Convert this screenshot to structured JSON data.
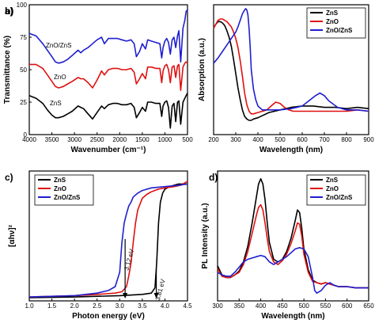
{
  "chart_data": [
    {
      "panel": "a)",
      "type": "line",
      "xlabel": "Wavenumber (cm⁻¹)",
      "ylabel": "Transmittance (%)",
      "xlim": [
        4000,
        500
      ],
      "ylim": [
        0,
        100
      ],
      "xticks": [
        4000,
        3500,
        3000,
        2500,
        2000,
        1500,
        1000,
        500
      ],
      "yticks": [
        0,
        25,
        50,
        75,
        100
      ],
      "grid": false,
      "legend": "none",
      "annotations": [
        "ZnO/ZnS",
        "ZnO",
        "ZnS"
      ],
      "series": [
        {
          "name": "ZnO/ZnS",
          "color": "#1f1fcf",
          "x": [
            4000,
            3850,
            3700,
            3600,
            3500,
            3420,
            3350,
            3250,
            3150,
            3050,
            2920,
            2860,
            2800,
            2700,
            2600,
            2500,
            2400,
            2340,
            2250,
            2150,
            2050,
            1950,
            1850,
            1750,
            1680,
            1630,
            1560,
            1500,
            1430,
            1380,
            1300,
            1200,
            1110,
            1070,
            1040,
            1000,
            960,
            920,
            880,
            840,
            800,
            760,
            720,
            690,
            650,
            600,
            560,
            530,
            500
          ],
          "y": [
            78,
            76,
            70,
            65,
            60,
            56,
            55,
            56,
            58,
            61,
            65,
            63,
            65,
            67,
            70,
            73,
            75,
            70,
            74,
            74,
            74,
            73,
            72,
            73,
            70,
            60,
            64,
            70,
            66,
            73,
            72,
            71,
            70,
            59,
            67,
            72,
            74,
            71,
            62,
            73,
            75,
            67,
            76,
            80,
            56,
            82,
            88,
            95,
            96
          ]
        },
        {
          "name": "ZnO",
          "color": "#e01010",
          "x": [
            4000,
            3850,
            3700,
            3600,
            3500,
            3420,
            3350,
            3250,
            3150,
            3050,
            2920,
            2860,
            2800,
            2700,
            2600,
            2500,
            2400,
            2340,
            2250,
            2150,
            2050,
            1950,
            1850,
            1750,
            1680,
            1630,
            1560,
            1500,
            1430,
            1380,
            1300,
            1200,
            1110,
            1070,
            1040,
            1000,
            960,
            920,
            880,
            840,
            800,
            760,
            720,
            690,
            650,
            600,
            560,
            530,
            500
          ],
          "y": [
            54,
            54,
            51,
            46,
            41,
            37,
            36,
            37,
            39,
            41,
            44,
            43,
            43,
            40,
            36,
            42,
            49,
            46,
            50,
            51,
            51,
            50,
            50,
            51,
            48,
            39,
            43,
            47,
            43,
            52,
            52,
            51,
            51,
            40,
            49,
            53,
            54,
            50,
            40,
            52,
            53,
            44,
            53,
            54,
            34,
            52,
            55,
            56,
            55
          ]
        },
        {
          "name": "ZnS",
          "color": "#000000",
          "x": [
            4000,
            3850,
            3700,
            3600,
            3500,
            3420,
            3350,
            3250,
            3150,
            3050,
            2920,
            2860,
            2800,
            2700,
            2600,
            2500,
            2400,
            2340,
            2250,
            2150,
            2050,
            1950,
            1850,
            1750,
            1680,
            1630,
            1560,
            1500,
            1430,
            1380,
            1300,
            1200,
            1110,
            1070,
            1040,
            1000,
            960,
            920,
            880,
            840,
            800,
            760,
            720,
            690,
            650,
            600,
            560,
            530,
            500
          ],
          "y": [
            30,
            28,
            24,
            19,
            15,
            13,
            13,
            14,
            16,
            18,
            22,
            21,
            20,
            16,
            12,
            17,
            22,
            20,
            23,
            24,
            24,
            23,
            23,
            24,
            21,
            13,
            17,
            21,
            18,
            25,
            25,
            24,
            24,
            14,
            22,
            25,
            26,
            21,
            5,
            22,
            24,
            10,
            25,
            26,
            8,
            25,
            28,
            30,
            32
          ]
        }
      ]
    },
    {
      "panel": "b)",
      "type": "line",
      "xlabel": "Wavelength (nm)",
      "ylabel": "Absorption (a.u.)",
      "xlim": [
        200,
        900
      ],
      "ylim": [
        0,
        100
      ],
      "xticks": [
        200,
        300,
        400,
        500,
        600,
        700,
        800,
        900
      ],
      "yticks": [],
      "grid": false,
      "legend": "top-right",
      "series": [
        {
          "name": "ZnS",
          "color": "#000000",
          "x": [
            200,
            210,
            220,
            230,
            240,
            250,
            260,
            270,
            280,
            290,
            300,
            310,
            320,
            330,
            340,
            350,
            360,
            370,
            380,
            400,
            450,
            500,
            550,
            600,
            650,
            700,
            750,
            800,
            850,
            900
          ],
          "y": [
            82,
            85,
            87,
            87,
            86,
            84,
            80,
            75,
            68,
            58,
            47,
            36,
            27,
            19,
            14,
            12,
            11,
            11,
            12,
            13,
            17,
            19,
            21,
            22,
            22,
            21,
            21,
            20,
            21,
            20
          ]
        },
        {
          "name": "ZnO",
          "color": "#e01010",
          "x": [
            200,
            210,
            220,
            230,
            240,
            250,
            260,
            270,
            280,
            290,
            300,
            310,
            320,
            330,
            340,
            350,
            360,
            370,
            380,
            400,
            420,
            440,
            460,
            480,
            500,
            520,
            540,
            560,
            600,
            650,
            700,
            750,
            800,
            850,
            900
          ],
          "y": [
            82,
            85,
            88,
            89,
            89,
            88,
            87,
            85,
            83,
            79,
            74,
            67,
            57,
            45,
            32,
            23,
            18,
            16,
            16,
            17,
            18,
            19,
            22,
            25,
            24,
            21,
            19,
            18,
            18,
            18,
            18,
            18,
            18,
            19,
            18
          ]
        },
        {
          "name": "ZnO/ZnS",
          "color": "#1f1fcf",
          "x": [
            200,
            220,
            240,
            260,
            280,
            300,
            310,
            320,
            330,
            340,
            345,
            350,
            355,
            360,
            365,
            370,
            380,
            390,
            400,
            420,
            450,
            500,
            550,
            600,
            630,
            660,
            680,
            700,
            720,
            760,
            800,
            850,
            900
          ],
          "y": [
            55,
            59,
            64,
            69,
            74,
            79,
            83,
            88,
            93,
            96,
            97,
            96,
            92,
            82,
            68,
            50,
            35,
            27,
            22,
            19,
            19,
            19,
            20,
            22,
            26,
            30,
            32,
            30,
            26,
            21,
            19,
            19,
            18
          ]
        }
      ]
    },
    {
      "panel": "c)",
      "type": "line",
      "xlabel": "Photon energy (eV)",
      "ylabel": "[αhν]²",
      "xlim": [
        1.0,
        4.5
      ],
      "ylim": [
        0,
        100
      ],
      "xticks": [
        1.0,
        1.5,
        2.0,
        2.5,
        3.0,
        3.5,
        4.0,
        4.5
      ],
      "xtick_labels": [
        "1.0",
        "1.5",
        "2.0",
        "2.5",
        "3.0",
        "3.5",
        "4.0",
        "4.5"
      ],
      "yticks": [],
      "grid": false,
      "legend": "top-left",
      "annotations": [
        {
          "text": "3.12 eV",
          "value": 3.12
        },
        {
          "text": "3.81 eV",
          "value": 3.81
        }
      ],
      "series": [
        {
          "name": "ZnS",
          "color": "#000000",
          "x": [
            1.0,
            2.0,
            3.0,
            3.5,
            3.7,
            3.78,
            3.82,
            3.86,
            3.9,
            3.95,
            4.0,
            4.1,
            4.2,
            4.3,
            4.4,
            4.5
          ],
          "y": [
            2.5,
            3,
            4,
            5,
            6,
            10,
            30,
            60,
            76,
            83,
            86,
            88,
            89,
            90,
            90,
            90
          ]
        },
        {
          "name": "ZnO",
          "color": "#e01010",
          "x": [
            1.0,
            2.0,
            2.5,
            2.9,
            3.05,
            3.15,
            3.2,
            3.25,
            3.3,
            3.35,
            3.4,
            3.5,
            3.6,
            3.7,
            3.85,
            4.0,
            4.2,
            4.35,
            4.5
          ],
          "y": [
            3,
            4,
            5,
            6,
            7,
            11,
            19,
            29,
            45,
            60,
            70,
            79,
            82,
            84,
            86,
            87,
            88,
            89,
            92
          ]
        },
        {
          "name": "ZnO/ZnS",
          "color": "#1f1fcf",
          "x": [
            1.0,
            2.0,
            2.5,
            2.75,
            2.9,
            3.0,
            3.05,
            3.1,
            3.15,
            3.2,
            3.25,
            3.3,
            3.4,
            3.5,
            3.7,
            4.0,
            4.3,
            4.5
          ],
          "y": [
            3,
            4,
            6,
            8,
            11,
            22,
            45,
            60,
            67,
            73,
            76,
            80,
            83,
            85,
            87,
            88,
            89,
            90
          ]
        }
      ]
    },
    {
      "panel": "d)",
      "type": "line",
      "xlabel": "Wavelength (nm)",
      "ylabel": "PL Intensity (a.u.)",
      "xlim": [
        300,
        650
      ],
      "ylim": [
        0,
        100
      ],
      "xticks": [
        300,
        350,
        400,
        450,
        500,
        550,
        600,
        650
      ],
      "yticks": [],
      "grid": false,
      "legend": "top-right",
      "series": [
        {
          "name": "ZnS",
          "color": "#000000",
          "x": [
            300,
            310,
            320,
            330,
            340,
            350,
            360,
            370,
            380,
            390,
            395,
            400,
            405,
            410,
            415,
            420,
            430,
            440,
            450,
            460,
            470,
            480,
            485,
            490,
            495,
            500,
            510,
            520,
            530,
            540,
            550,
            560,
            570,
            580,
            600,
            620,
            640,
            650
          ],
          "y": [
            27,
            20,
            18,
            18,
            20,
            23,
            30,
            42,
            60,
            80,
            90,
            94,
            90,
            78,
            60,
            45,
            32,
            30,
            32,
            38,
            48,
            62,
            70,
            68,
            56,
            40,
            24,
            16,
            14,
            13,
            14,
            13,
            12,
            11,
            11,
            10,
            10,
            10
          ]
        },
        {
          "name": "ZnO",
          "color": "#e01010",
          "x": [
            300,
            310,
            320,
            330,
            340,
            350,
            360,
            370,
            380,
            390,
            395,
            400,
            405,
            410,
            415,
            420,
            430,
            440,
            450,
            460,
            470,
            480,
            485,
            490,
            495,
            500,
            510,
            520,
            530,
            540,
            550,
            560,
            570,
            580,
            600,
            620,
            640,
            650
          ],
          "y": [
            25,
            19,
            18,
            18,
            20,
            22,
            28,
            38,
            52,
            66,
            72,
            74,
            70,
            60,
            48,
            38,
            30,
            28,
            31,
            36,
            44,
            54,
            60,
            59,
            50,
            36,
            22,
            15,
            14,
            13,
            14,
            13,
            12,
            11,
            11,
            10,
            10,
            10
          ]
        },
        {
          "name": "ZnO/ZnS",
          "color": "#1f1fcf",
          "x": [
            300,
            310,
            320,
            330,
            340,
            350,
            360,
            370,
            380,
            390,
            400,
            410,
            420,
            430,
            440,
            450,
            460,
            470,
            480,
            490,
            500,
            510,
            520,
            525,
            530,
            540,
            550,
            560,
            570,
            580,
            600,
            620,
            640,
            650
          ],
          "y": [
            22,
            20,
            19,
            19,
            22,
            26,
            30,
            32,
            33,
            34,
            35,
            34,
            30,
            28,
            30,
            32,
            34,
            37,
            40,
            41,
            40,
            34,
            18,
            8,
            6,
            8,
            12,
            14,
            12,
            11,
            11,
            10,
            10,
            10
          ]
        }
      ]
    }
  ]
}
